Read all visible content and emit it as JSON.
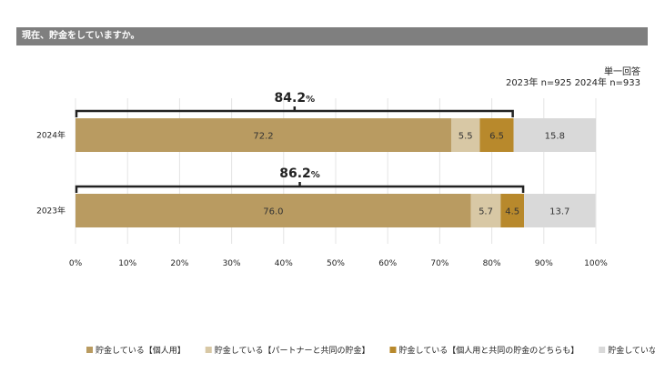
{
  "header": {
    "title": "現在、貯金をしていますか。"
  },
  "notes": {
    "answer_type": "単一回答",
    "sample": "2023年 n=925  2024年 n=933"
  },
  "chart_data": {
    "type": "bar",
    "orientation": "horizontal-stacked-100",
    "categories": [
      "2024年",
      "2023年"
    ],
    "series": [
      {
        "name": "貯金している【個人用】",
        "color": "#b99b61",
        "values": [
          72.2,
          76.0
        ]
      },
      {
        "name": "貯金している【パートナーと共同の貯金】",
        "color": "#d8c8a5",
        "values": [
          5.5,
          5.7
        ]
      },
      {
        "name": "貯金している【個人用と共同の貯金のどちらも】",
        "color": "#b8892c",
        "values": [
          6.5,
          4.5
        ]
      },
      {
        "name": "貯金していない",
        "color": "#d9d9d9",
        "values": [
          15.8,
          13.7
        ]
      }
    ],
    "totals": [
      {
        "value": "84.2",
        "unit": "%"
      },
      {
        "value": "86.2",
        "unit": "%"
      }
    ],
    "xlim": [
      0,
      100
    ],
    "xticks": [
      "0%",
      "10%",
      "20%",
      "30%",
      "40%",
      "50%",
      "60%",
      "70%",
      "80%",
      "90%",
      "100%"
    ],
    "grid": true,
    "legend": "bottom"
  }
}
